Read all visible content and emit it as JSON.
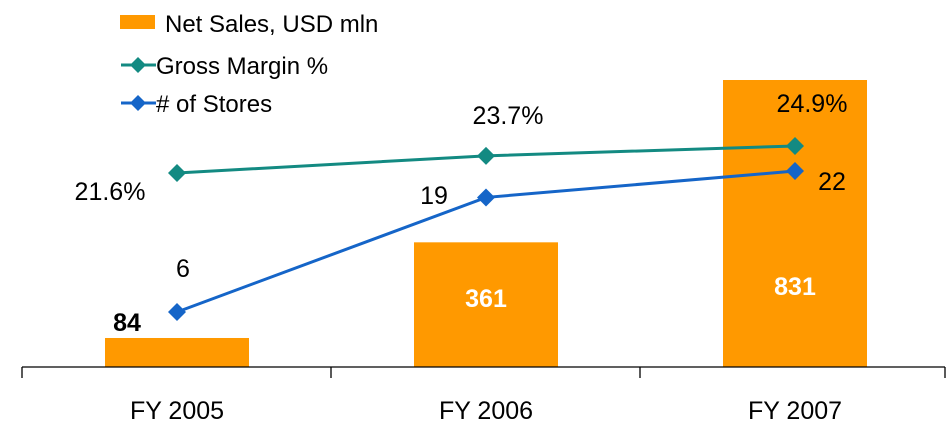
{
  "chart_data": {
    "type": "bar",
    "categories": [
      "FY 2005",
      "FY 2006",
      "FY 2007"
    ],
    "series": [
      {
        "name": "Net Sales, USD mln",
        "type": "bar",
        "values": [
          84,
          361,
          831
        ],
        "labels": [
          "84",
          "361",
          "831"
        ],
        "color": "#FF9900"
      },
      {
        "name": "Gross Margin %",
        "type": "line",
        "values": [
          21.6,
          23.7,
          24.9
        ],
        "labels": [
          "21.6%",
          "23.7%",
          "24.9%"
        ],
        "color": "#138A82"
      },
      {
        "name": "# of Stores",
        "type": "line",
        "values": [
          6,
          19,
          22
        ],
        "labels": [
          "6",
          "19",
          "22"
        ],
        "color": "#1565C8"
      }
    ],
    "legend_position": "top-left",
    "grid": false
  }
}
